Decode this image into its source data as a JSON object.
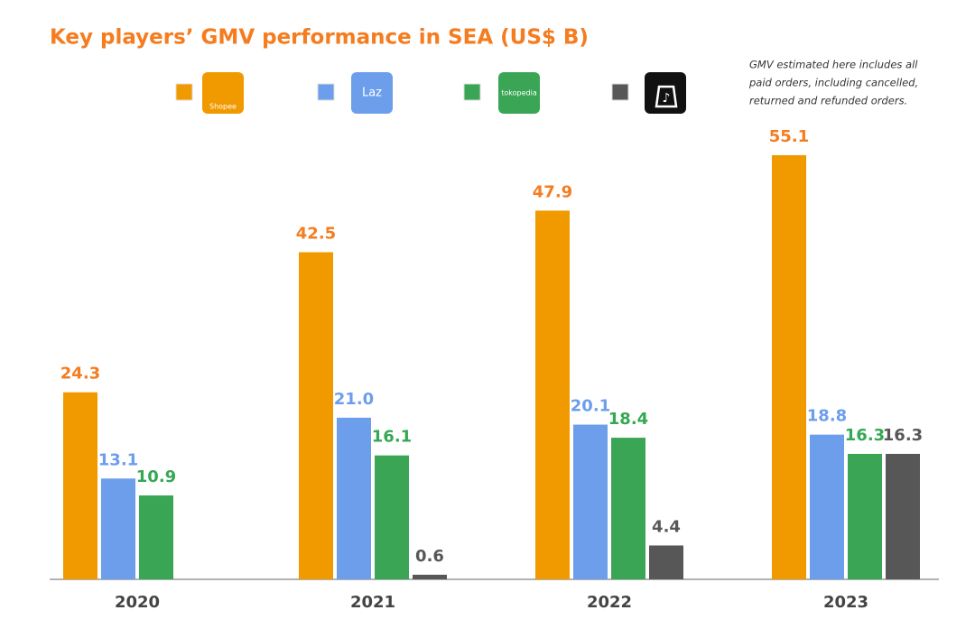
{
  "chart_data": {
    "type": "bar",
    "title": "Key players’ GMV performance in SEA (US$ B)",
    "note": [
      "GMV estimated here includes all",
      "paid orders, including cancelled,",
      "returned and refunded orders."
    ],
    "categories": [
      "2020",
      "2021",
      "2022",
      "2023"
    ],
    "series": [
      {
        "name": "Shopee",
        "color": "#f09a00",
        "label_color": "#f57c1f",
        "values": [
          24.3,
          42.5,
          47.9,
          55.1
        ],
        "value_labels": [
          "24.3",
          "42.5",
          "47.9",
          "55.1"
        ]
      },
      {
        "name": "Laz",
        "color": "#6d9eeb",
        "label_color": "#6d9eeb",
        "values": [
          13.1,
          21.0,
          20.1,
          18.8
        ],
        "value_labels": [
          "13.1",
          "21.0",
          "20.1",
          "18.8"
        ]
      },
      {
        "name": "tokopedia",
        "color": "#3aa655",
        "label_color": "#34a853",
        "values": [
          10.9,
          16.1,
          18.4,
          16.3
        ],
        "value_labels": [
          "10.9",
          "16.1",
          "18.4",
          "16.3"
        ]
      },
      {
        "color": "#575757",
        "label_color": "#575757",
        "values": [
          null,
          0.6,
          4.4,
          16.3
        ],
        "value_labels": [
          null,
          "0.6",
          "4.4",
          "16.3"
        ]
      }
    ]
  }
}
